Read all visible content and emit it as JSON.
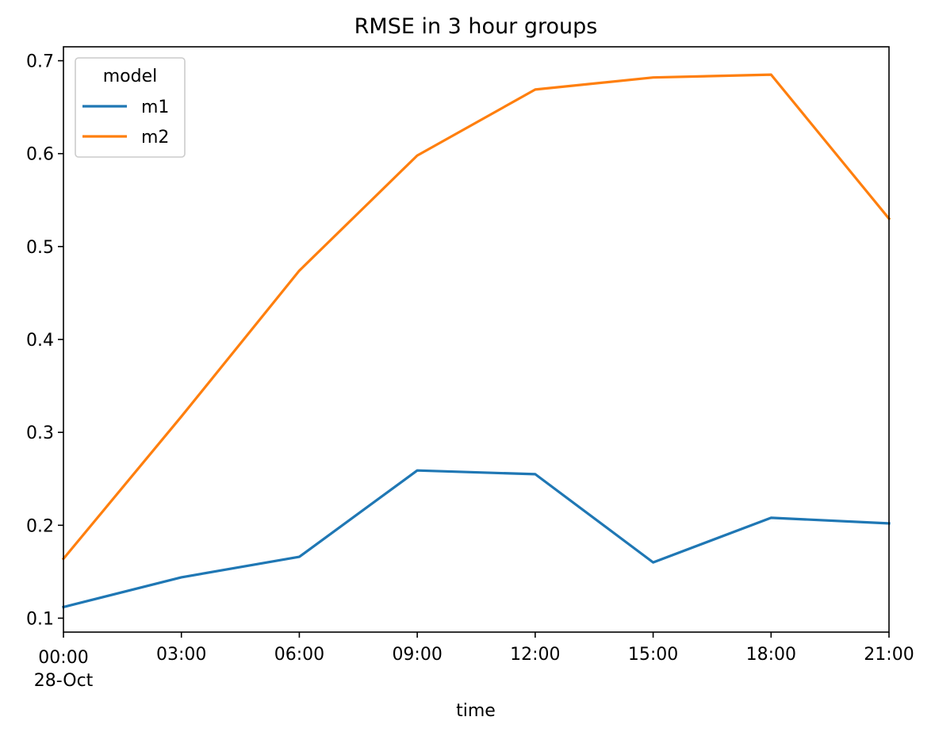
{
  "chart_data": {
    "type": "line",
    "title": "RMSE in 3 hour groups",
    "xlabel": "time",
    "ylabel": "",
    "x": [
      "00:00",
      "03:00",
      "06:00",
      "09:00",
      "12:00",
      "15:00",
      "18:00",
      "21:00"
    ],
    "x_secondary_label": "28-Oct",
    "xlim": [
      "00:00",
      "21:00"
    ],
    "ylim": [
      0.085,
      0.715
    ],
    "yticks": [
      "0.1",
      "0.2",
      "0.3",
      "0.4",
      "0.5",
      "0.6",
      "0.7"
    ],
    "grid": false,
    "legend": {
      "title": "model",
      "placement": "top-left"
    },
    "series": [
      {
        "name": "m1",
        "color": "#1f77b4",
        "values": [
          0.112,
          0.144,
          0.166,
          0.259,
          0.255,
          0.16,
          0.208,
          0.202
        ]
      },
      {
        "name": "m2",
        "color": "#ff7f0e",
        "values": [
          0.164,
          0.317,
          0.474,
          0.598,
          0.669,
          0.682,
          0.685,
          0.53
        ]
      }
    ]
  }
}
